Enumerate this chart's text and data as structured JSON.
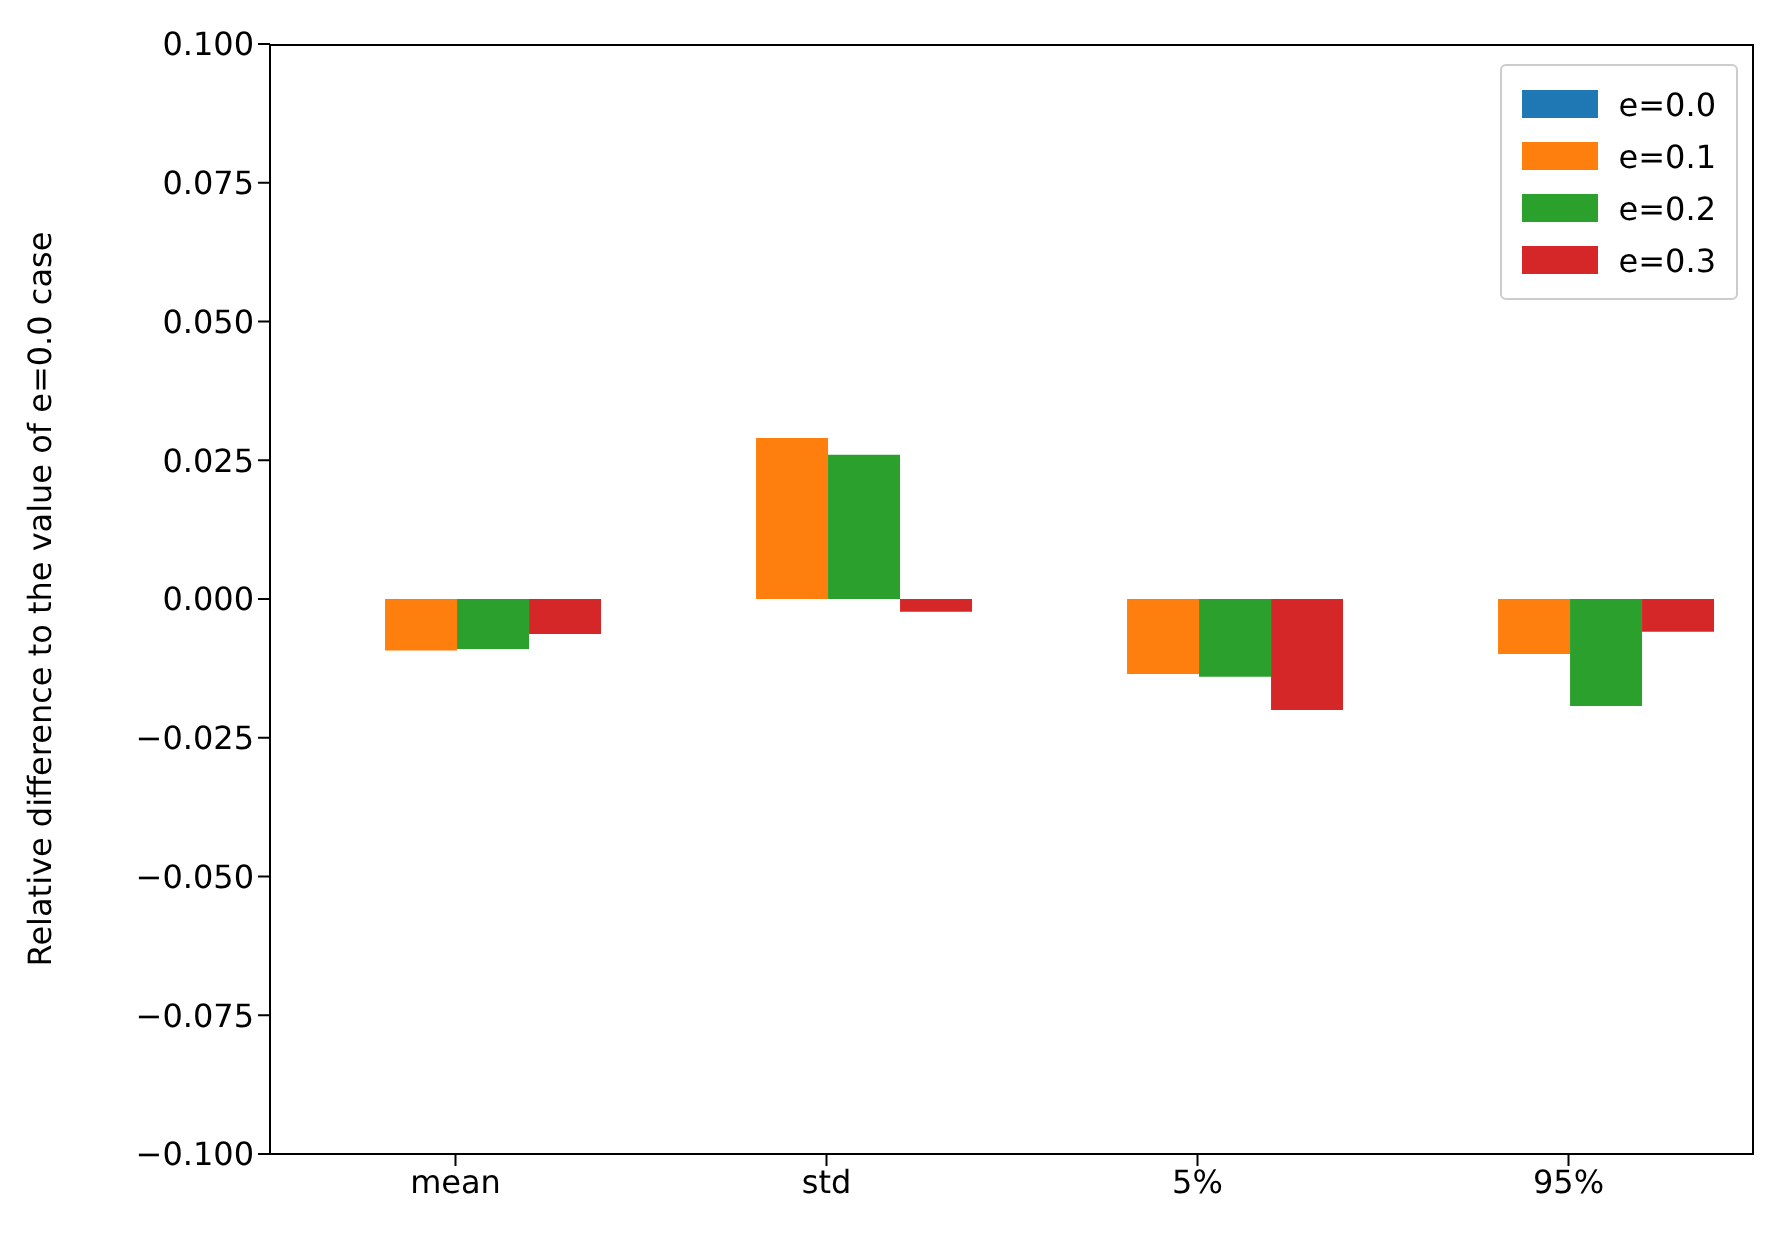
{
  "chart_data": {
    "type": "bar",
    "ylabel": "Relative difference to the value of e=0.0 case",
    "categories": [
      "mean",
      "std",
      "5%",
      "95%"
    ],
    "series": [
      {
        "name": "e=0.0",
        "color": "#1f77b4",
        "values": [
          0,
          0,
          0,
          0
        ]
      },
      {
        "name": "e=0.1",
        "color": "#ff7f0e",
        "values": [
          -0.0093,
          0.029,
          -0.0135,
          -0.0099
        ]
      },
      {
        "name": "e=0.2",
        "color": "#2ca02c",
        "values": [
          -0.009,
          0.026,
          -0.014,
          -0.0193
        ]
      },
      {
        "name": "e=0.3",
        "color": "#d62728",
        "values": [
          -0.0063,
          -0.0023,
          -0.02,
          -0.0059
        ]
      }
    ],
    "ylim": [
      -0.1,
      0.1
    ],
    "yticks": [
      {
        "value": -0.1,
        "label": "−0.100"
      },
      {
        "value": -0.075,
        "label": "−0.075"
      },
      {
        "value": -0.05,
        "label": "−0.050"
      },
      {
        "value": -0.025,
        "label": "−0.025"
      },
      {
        "value": 0,
        "label": "0.000"
      },
      {
        "value": 0.025,
        "label": "0.025"
      },
      {
        "value": 0.05,
        "label": "0.050"
      },
      {
        "value": 0.075,
        "label": "0.075"
      },
      {
        "value": 0.1,
        "label": "0.100"
      }
    ],
    "grid": false,
    "legend": "top right"
  }
}
